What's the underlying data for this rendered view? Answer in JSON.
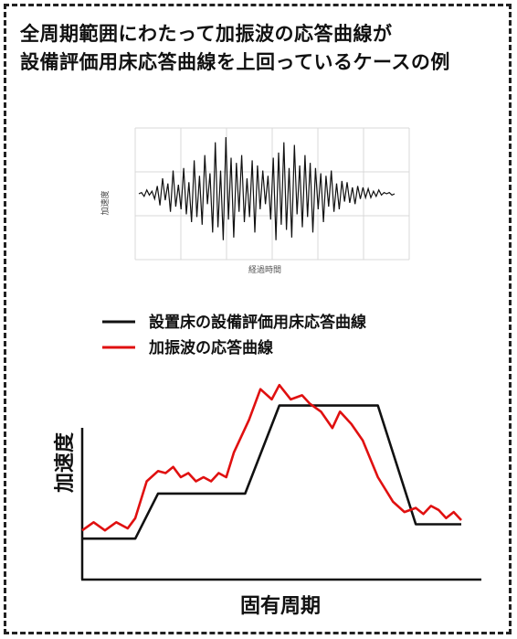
{
  "title": {
    "line1": "全周期範囲にわたって加振波の応答曲線が",
    "line2": "設備評価用床応答曲線を上回っているケースの例"
  },
  "chart_data": [
    {
      "type": "line",
      "role": "waveform",
      "ylabel": "加速度",
      "xlabel": "経過時間",
      "x_ticks": [],
      "samples": [
        0,
        1,
        -2,
        3,
        -1,
        2,
        -4,
        6,
        -9,
        12,
        -5,
        8,
        -14,
        18,
        -10,
        7,
        -12,
        20,
        -16,
        9,
        -22,
        26,
        -18,
        14,
        -24,
        30,
        -8,
        16,
        -30,
        40,
        -26,
        18,
        -36,
        44,
        -20,
        28,
        -34,
        24,
        -14,
        30,
        -22,
        12,
        -18,
        26,
        -30,
        22,
        -12,
        18,
        -8,
        14,
        -20,
        28,
        -36,
        32,
        -24,
        40,
        -28,
        20,
        -34,
        38,
        -16,
        22,
        -26,
        30,
        -18,
        24,
        -30,
        20,
        -12,
        16,
        -22,
        14,
        -10,
        18,
        -14,
        8,
        -12,
        10,
        -6,
        9,
        -7,
        5,
        -8,
        6,
        -4,
        5,
        -3,
        4,
        -3,
        2,
        -2,
        3,
        -1,
        1,
        0,
        1,
        -1,
        0
      ],
      "colors": {
        "line": "#111111",
        "grid": "#d8d8d8"
      }
    },
    {
      "type": "line",
      "role": "response-spectrum",
      "xlabel": "固有周期",
      "ylabel": "加速度",
      "xlim": [
        0,
        100
      ],
      "ylim": [
        0,
        100
      ],
      "series": [
        {
          "name": "設置床の設備評価用床応答曲線",
          "color": "#111111",
          "x": [
            0,
            14,
            20,
            35,
            43,
            52,
            60,
            78,
            88,
            100
          ],
          "y": [
            20,
            20,
            42,
            42,
            42,
            85,
            85,
            85,
            27,
            27
          ]
        },
        {
          "name": "加振波の応答曲線",
          "color": "#e01010",
          "x": [
            0,
            3,
            6,
            9,
            12,
            14,
            17,
            20,
            22,
            24,
            26,
            28,
            30,
            32,
            34,
            36,
            38,
            40,
            42,
            44,
            47,
            50,
            52,
            55,
            58,
            60,
            63,
            66,
            68,
            71,
            74,
            78,
            82,
            85,
            88,
            90,
            92,
            94,
            96,
            98,
            100
          ],
          "y": [
            24,
            28,
            24,
            28,
            25,
            30,
            48,
            53,
            52,
            55,
            50,
            52,
            48,
            50,
            48,
            52,
            50,
            62,
            70,
            78,
            93,
            88,
            95,
            88,
            90,
            86,
            82,
            74,
            82,
            76,
            68,
            50,
            38,
            33,
            35,
            32,
            36,
            34,
            30,
            33,
            29
          ]
        }
      ]
    }
  ]
}
